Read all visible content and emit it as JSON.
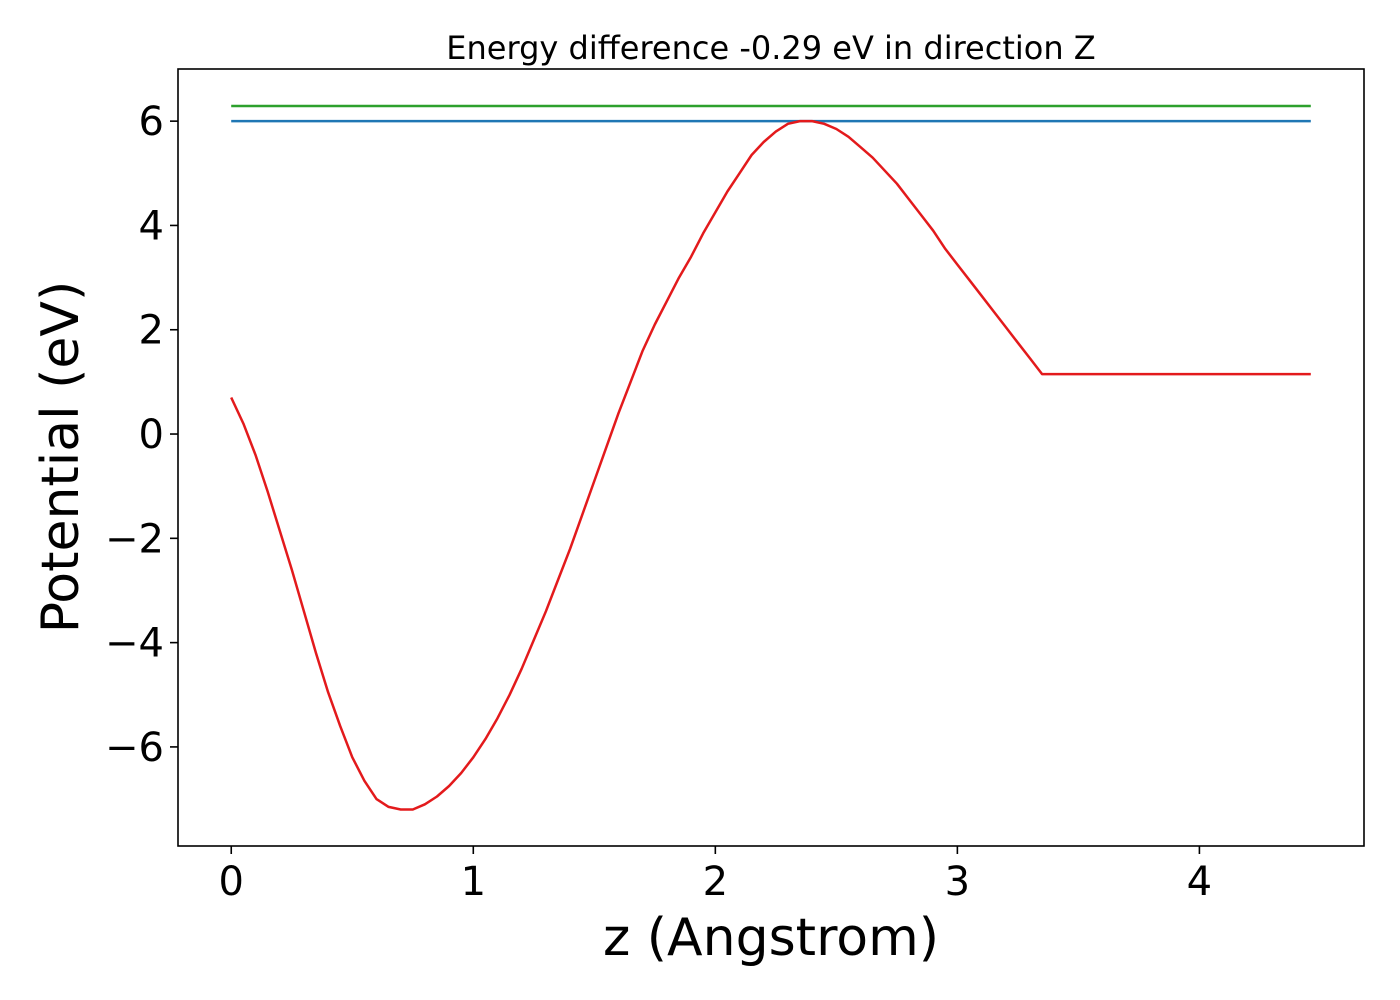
{
  "chart_data": {
    "type": "line",
    "title": "Energy difference -0.29 eV in direction Z",
    "xlabel": "z (Angstrom)",
    "ylabel": "Potential (eV)",
    "xlim": [
      -0.22,
      4.68
    ],
    "ylim": [
      -7.9,
      7.0
    ],
    "xticks": [
      0,
      1,
      2,
      3,
      4
    ],
    "xtick_labels": [
      "0",
      "1",
      "2",
      "3",
      "4"
    ],
    "yticks": [
      -6,
      -4,
      -2,
      0,
      2,
      4,
      6
    ],
    "ytick_labels": [
      "−6",
      "−4",
      "−2",
      "0",
      "2",
      "4",
      "6"
    ],
    "grid": false,
    "series": [
      {
        "color": "#2ca02c",
        "x": [
          0,
          4.46
        ],
        "y": [
          6.29,
          6.29
        ]
      },
      {
        "color": "#1f77b4",
        "x": [
          0,
          4.46
        ],
        "y": [
          6.0,
          6.0
        ]
      },
      {
        "color": "#e31a1c",
        "x": [
          0,
          0.05,
          0.1,
          0.15,
          0.2,
          0.25,
          0.3,
          0.35,
          0.4,
          0.45,
          0.5,
          0.55,
          0.6,
          0.65,
          0.7,
          0.75,
          0.8,
          0.85,
          0.9,
          0.95,
          1.0,
          1.05,
          1.1,
          1.15,
          1.2,
          1.25,
          1.3,
          1.35,
          1.4,
          1.45,
          1.5,
          1.55,
          1.6,
          1.65,
          1.7,
          1.75,
          1.8,
          1.85,
          1.9,
          1.95,
          2.0,
          2.05,
          2.1,
          2.15,
          2.2,
          2.25,
          2.3,
          2.35,
          2.4,
          2.45,
          2.5,
          2.55,
          2.6,
          2.65,
          2.7,
          2.75,
          2.8,
          2.85,
          2.9,
          2.95,
          3.0,
          3.05,
          3.1,
          3.15,
          3.2,
          3.25,
          3.3,
          3.35,
          3.4,
          3.45,
          3.5,
          3.55,
          3.6,
          3.65,
          3.7,
          3.75,
          3.8,
          3.85,
          3.9,
          3.95,
          4.0,
          4.05,
          4.1,
          4.15,
          4.2,
          4.25,
          4.3,
          4.35,
          4.4,
          4.46
        ],
        "y": [
          0.7,
          0.2,
          -0.4,
          -1.1,
          -1.85,
          -2.6,
          -3.4,
          -4.2,
          -4.95,
          -5.6,
          -6.2,
          -6.65,
          -7.0,
          -7.15,
          -7.2,
          -7.2,
          -7.1,
          -6.95,
          -6.75,
          -6.5,
          -6.2,
          -5.85,
          -5.45,
          -5.0,
          -4.5,
          -3.95,
          -3.4,
          -2.8,
          -2.2,
          -1.55,
          -0.9,
          -0.25,
          0.4,
          1.0,
          1.6,
          2.1,
          2.55,
          3.0,
          3.4,
          3.85,
          4.25,
          4.65,
          5.0,
          5.35,
          5.6,
          5.8,
          5.95,
          6.0,
          6.0,
          5.95,
          5.85,
          5.7,
          5.5,
          5.3,
          5.05,
          4.8,
          4.5,
          4.2,
          3.9,
          3.55,
          3.25,
          2.95,
          2.65,
          2.35,
          2.05,
          1.75,
          1.45,
          1.15,
          1.15,
          1.15,
          1.15,
          1.15,
          1.15,
          1.15,
          1.15,
          1.15,
          1.15,
          1.15,
          1.15,
          1.15,
          1.15,
          1.15,
          1.15,
          1.15,
          1.15,
          1.15,
          1.15,
          1.15,
          1.15,
          1.15
        ]
      }
    ]
  }
}
